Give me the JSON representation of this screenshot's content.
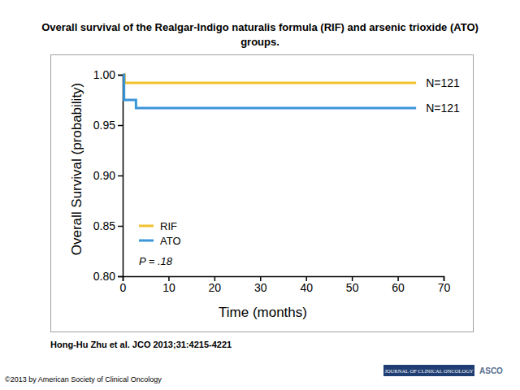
{
  "chart_data": {
    "type": "step",
    "title": "Overall survival of the Realgar-Indigo naturalis formula (RIF) and arsenic trioxide (ATO) groups.",
    "x_label": "Time (months)",
    "y_label": "Overall Survival (probability)",
    "xlim": [
      0,
      70
    ],
    "xticks": [
      0,
      10,
      20,
      30,
      40,
      50,
      60,
      70
    ],
    "ylim": [
      0.8,
      1.0
    ],
    "yticks": [
      {
        "value": 1.0,
        "label": "1.00"
      },
      0.95,
      {
        "value": 0.9,
        "label": "0.90"
      },
      0.85,
      {
        "value": 0.8,
        "label": "0.80"
      }
    ],
    "grid": false,
    "legend": "lower left",
    "series": [
      {
        "name": "RIF",
        "color": "#f2c12e",
        "x": [
          0,
          0.4,
          64
        ],
        "values": [
          1.0,
          0.992,
          0.992
        ],
        "annotation": "N=121"
      },
      {
        "name": "ATO",
        "color": "#3a96d8",
        "x": [
          0,
          0.3,
          2.9,
          64
        ],
        "values": [
          1.0,
          0.975,
          0.967,
          0.967
        ],
        "annotation": "N=121"
      }
    ],
    "p_label": "P = .18",
    "source": "Hong-Hu Zhu et al. JCO 2013;31:4215-4221",
    "copyright": "©2013 by American Society of Clinical Oncology",
    "logo": [
      "JOURNAL OF CLINICAL ONCOLOGY",
      "ASCO"
    ]
  }
}
